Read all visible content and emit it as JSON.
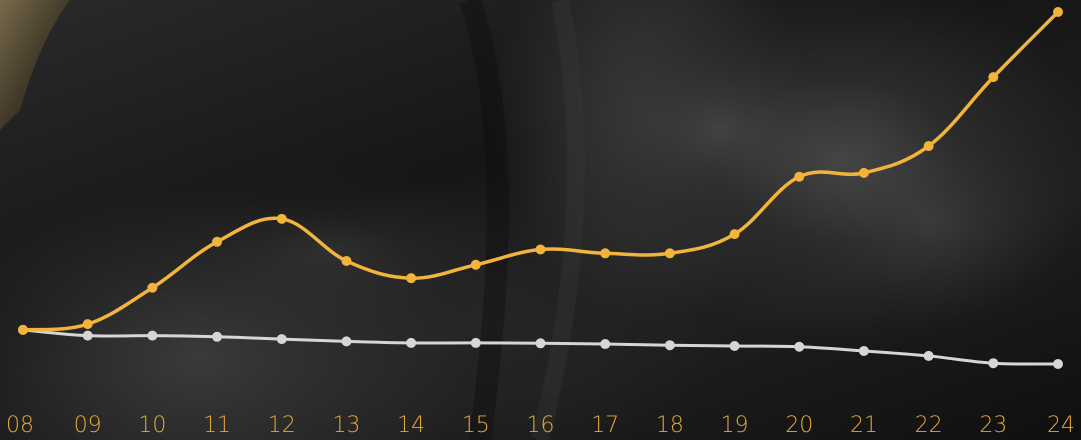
{
  "colors": {
    "series_primary": "#f2b43a",
    "series_secondary": "#d6d6d6",
    "tick_label": "#e3a83a"
  },
  "chart_data": {
    "type": "line",
    "title": "",
    "xlabel": "",
    "ylabel": "",
    "x": [
      "08",
      "09",
      "10",
      "11",
      "12",
      "13",
      "14",
      "15",
      "16",
      "17",
      "18",
      "19",
      "20",
      "21",
      "22",
      "23",
      "24"
    ],
    "ylim": [
      0,
      100
    ],
    "grid": false,
    "series": [
      {
        "color": "#f2b43a",
        "values": [
          17,
          18.5,
          28,
          40,
          46,
          35,
          30.5,
          34,
          38,
          37,
          37,
          42,
          57,
          58,
          65,
          83,
          100
        ]
      },
      {
        "color": "#d6d6d6",
        "values": [
          17,
          15.5,
          15.5,
          15.2,
          14.6,
          14,
          13.6,
          13.6,
          13.5,
          13.3,
          13.0,
          12.8,
          12.6,
          11.5,
          10.2,
          8.3,
          8.1
        ]
      }
    ]
  }
}
